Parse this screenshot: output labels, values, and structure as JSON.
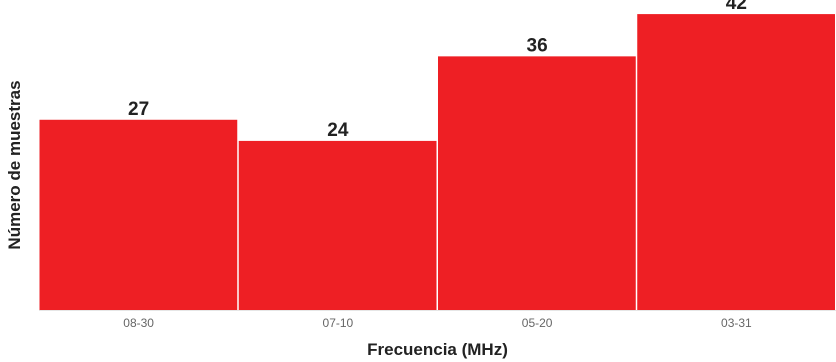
{
  "chart_data": {
    "type": "bar",
    "title": "",
    "xlabel": "Frecuencia (MHz)",
    "ylabel": "Número de muestras",
    "categories": [
      "08-30",
      "07-10",
      "05-20",
      "03-31"
    ],
    "values": [
      27,
      24,
      36,
      42
    ],
    "ylim": [
      0,
      44
    ],
    "grid": false,
    "legend": "none",
    "bar_color": "#ee1f24",
    "data_labels": true
  }
}
